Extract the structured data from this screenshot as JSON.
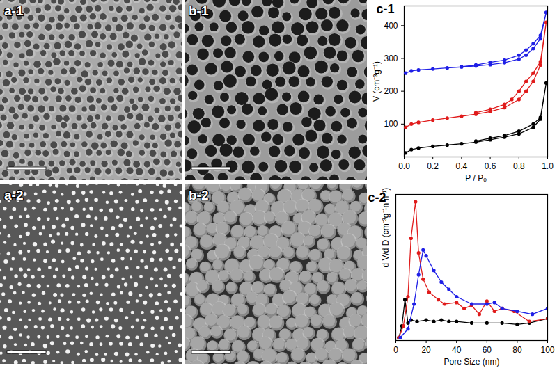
{
  "images": [
    {
      "label": "a-1"
    },
    {
      "label": "b-1"
    },
    {
      "label": "a-2"
    },
    {
      "label": "b-2"
    }
  ],
  "chart_data": [
    {
      "type": "line",
      "title": "c-1",
      "x_label": "P / Pₒ",
      "y_label": "V (cm⁻³g⁻¹)",
      "xlim": [
        0,
        1
      ],
      "xticks": [
        {
          "value": 0,
          "label": "0.0"
        },
        0.2,
        0.4,
        0.6,
        0.8,
        {
          "value": 1,
          "label": "1.0"
        }
      ],
      "ylim": [
        0,
        460
      ],
      "yticks": [
        100,
        200,
        300,
        400
      ],
      "marker": "circle",
      "series": [
        {
          "color": "#1f1fe6",
          "x": [
            0.01,
            0.05,
            0.1,
            0.2,
            0.3,
            0.4,
            0.5,
            0.6,
            0.7,
            0.8,
            0.85,
            0.9,
            0.95,
            0.99,
            0.95,
            0.9,
            0.85,
            0.8,
            0.7,
            0.6,
            0.5,
            0.4
          ],
          "values": [
            255,
            262,
            265,
            268,
            271,
            274,
            277,
            281,
            287,
            298,
            310,
            330,
            360,
            440,
            370,
            345,
            325,
            310,
            295,
            288,
            280,
            275
          ]
        },
        {
          "color": "#e01b1b",
          "x": [
            0.01,
            0.05,
            0.1,
            0.2,
            0.3,
            0.4,
            0.5,
            0.6,
            0.7,
            0.8,
            0.85,
            0.9,
            0.95,
            0.99,
            0.95,
            0.9,
            0.85,
            0.8,
            0.75,
            0.7,
            0.6,
            0.5
          ],
          "values": [
            90,
            100,
            105,
            112,
            118,
            124,
            130,
            138,
            150,
            175,
            200,
            230,
            280,
            410,
            290,
            255,
            230,
            200,
            175,
            160,
            145,
            135
          ]
        },
        {
          "color": "#000000",
          "x": [
            0.01,
            0.05,
            0.1,
            0.2,
            0.3,
            0.4,
            0.5,
            0.6,
            0.7,
            0.8,
            0.9,
            0.95,
            0.99,
            0.95,
            0.9,
            0.8,
            0.7,
            0.6,
            0.5
          ],
          "values": [
            12,
            22,
            27,
            32,
            36,
            40,
            45,
            52,
            60,
            70,
            90,
            115,
            225,
            120,
            100,
            78,
            65,
            57,
            48
          ]
        }
      ]
    },
    {
      "type": "line",
      "title": "c-2",
      "x_label": "Pore Size (nm)",
      "y_label": "d V/d D (cm⁻³g⁻¹nm⁻¹)",
      "xlim": [
        0,
        100
      ],
      "xticks": [
        0,
        20,
        40,
        60,
        80,
        100
      ],
      "ylim": [
        0,
        1
      ],
      "tick_labels": "x",
      "marker": "circle",
      "series": [
        {
          "color": "#000000",
          "x": [
            2,
            4,
            6,
            8,
            10,
            14,
            20,
            25,
            30,
            35,
            40,
            50,
            60,
            70,
            80,
            88,
            100
          ],
          "values": [
            0.02,
            0.1,
            0.28,
            0.12,
            0.14,
            0.13,
            0.14,
            0.13,
            0.14,
            0.13,
            0.13,
            0.12,
            0.12,
            0.12,
            0.11,
            0.12,
            0.15
          ]
        },
        {
          "color": "#e01b1b",
          "x": [
            2,
            5,
            8,
            10,
            13,
            15,
            18,
            22,
            28,
            32,
            40,
            45,
            50,
            55,
            60,
            65,
            70,
            78,
            88,
            100
          ],
          "values": [
            0.02,
            0.1,
            0.3,
            0.7,
            0.95,
            0.6,
            0.42,
            0.33,
            0.28,
            0.25,
            0.26,
            0.22,
            0.24,
            0.18,
            0.27,
            0.2,
            0.22,
            0.2,
            0.13,
            0.15
          ]
        },
        {
          "color": "#1f1fe6",
          "x": [
            3,
            8,
            12,
            15,
            18,
            20,
            25,
            30,
            35,
            40,
            50,
            60,
            65,
            70,
            80,
            90,
            100
          ],
          "values": [
            0.02,
            0.08,
            0.25,
            0.45,
            0.62,
            0.58,
            0.48,
            0.4,
            0.35,
            0.3,
            0.25,
            0.25,
            0.26,
            0.22,
            0.2,
            0.18,
            0.22
          ]
        }
      ]
    }
  ]
}
